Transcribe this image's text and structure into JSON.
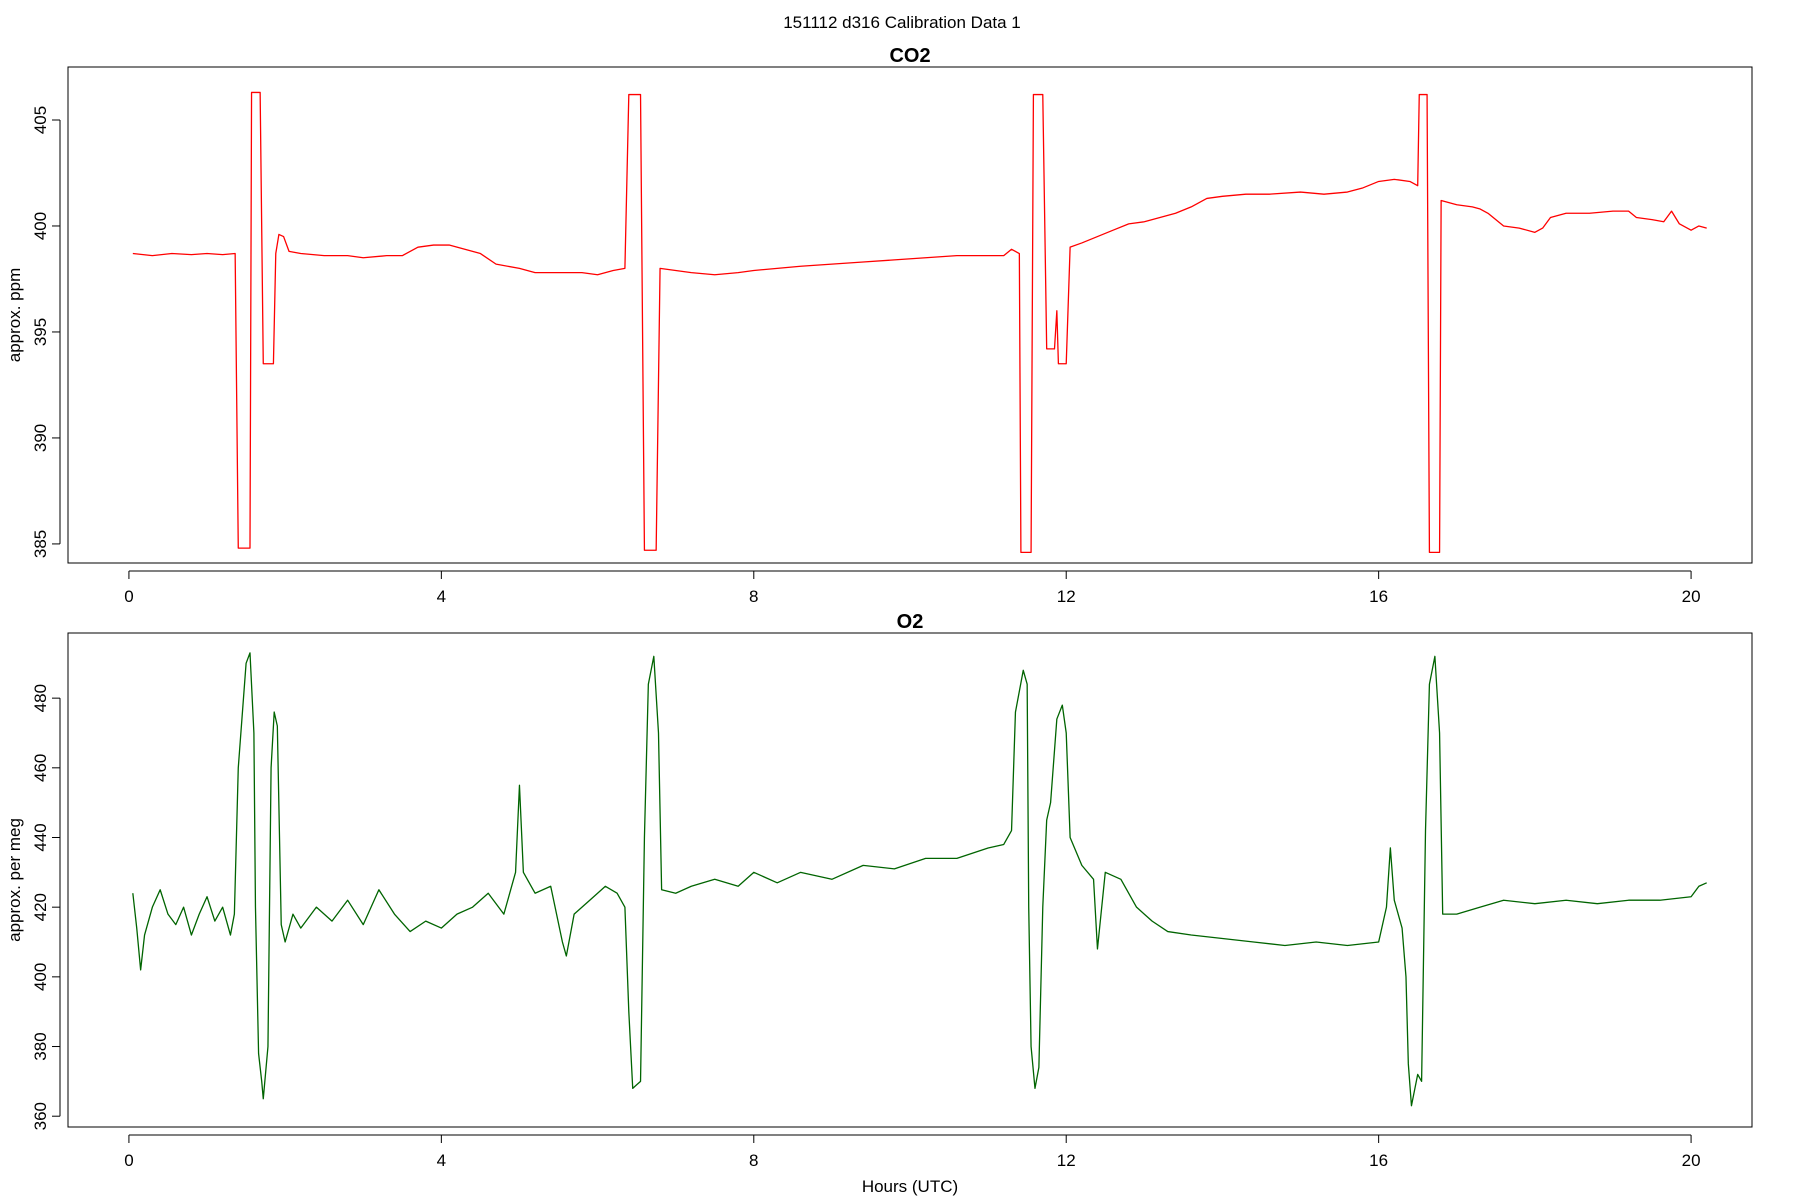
{
  "figure": {
    "title": "151112   d316   Calibration Data 1"
  },
  "chart_data": [
    {
      "type": "line",
      "title": "CO2",
      "xlabel": "",
      "ylabel": "approx. ppm",
      "xlim": [
        -0.78,
        20.78
      ],
      "ylim": [
        384.1,
        407.5
      ],
      "x_ticks": [
        0,
        4,
        8,
        12,
        16,
        20
      ],
      "y_ticks": [
        385,
        390,
        395,
        400,
        405
      ],
      "grid": false,
      "legend": "none",
      "series": [
        {
          "color": "#ff0000",
          "points": [
            [
              0.05,
              398.7
            ],
            [
              0.3,
              398.6
            ],
            [
              0.55,
              398.7
            ],
            [
              0.8,
              398.65
            ],
            [
              1.0,
              398.7
            ],
            [
              1.2,
              398.65
            ],
            [
              1.36,
              398.7
            ],
            [
              1.4,
              384.8
            ],
            [
              1.55,
              384.8
            ],
            [
              1.57,
              406.3
            ],
            [
              1.68,
              406.3
            ],
            [
              1.72,
              393.5
            ],
            [
              1.85,
              393.5
            ],
            [
              1.88,
              398.7
            ],
            [
              1.92,
              399.6
            ],
            [
              1.98,
              399.5
            ],
            [
              2.05,
              398.8
            ],
            [
              2.2,
              398.7
            ],
            [
              2.5,
              398.6
            ],
            [
              2.8,
              398.6
            ],
            [
              3.0,
              398.5
            ],
            [
              3.3,
              398.6
            ],
            [
              3.5,
              398.6
            ],
            [
              3.7,
              399.0
            ],
            [
              3.9,
              399.1
            ],
            [
              4.1,
              399.1
            ],
            [
              4.3,
              398.9
            ],
            [
              4.5,
              398.7
            ],
            [
              4.7,
              398.2
            ],
            [
              5.0,
              398.0
            ],
            [
              5.2,
              397.8
            ],
            [
              5.5,
              397.8
            ],
            [
              5.8,
              397.8
            ],
            [
              6.0,
              397.7
            ],
            [
              6.2,
              397.9
            ],
            [
              6.35,
              398.0
            ],
            [
              6.4,
              406.2
            ],
            [
              6.55,
              406.2
            ],
            [
              6.6,
              384.7
            ],
            [
              6.75,
              384.7
            ],
            [
              6.8,
              398.0
            ],
            [
              7.0,
              397.9
            ],
            [
              7.2,
              397.8
            ],
            [
              7.5,
              397.7
            ],
            [
              7.8,
              397.8
            ],
            [
              8.0,
              397.9
            ],
            [
              8.3,
              398.0
            ],
            [
              8.6,
              398.1
            ],
            [
              9.0,
              398.2
            ],
            [
              9.4,
              398.3
            ],
            [
              9.8,
              398.4
            ],
            [
              10.2,
              398.5
            ],
            [
              10.6,
              398.6
            ],
            [
              11.0,
              398.6
            ],
            [
              11.2,
              398.6
            ],
            [
              11.3,
              398.9
            ],
            [
              11.4,
              398.7
            ],
            [
              11.42,
              384.6
            ],
            [
              11.55,
              384.6
            ],
            [
              11.58,
              406.2
            ],
            [
              11.7,
              406.2
            ],
            [
              11.75,
              394.2
            ],
            [
              11.85,
              394.2
            ],
            [
              11.88,
              396.0
            ],
            [
              11.9,
              393.5
            ],
            [
              12.0,
              393.5
            ],
            [
              12.05,
              399.0
            ],
            [
              12.2,
              399.2
            ],
            [
              12.4,
              399.5
            ],
            [
              12.6,
              399.8
            ],
            [
              12.8,
              400.1
            ],
            [
              13.0,
              400.2
            ],
            [
              13.2,
              400.4
            ],
            [
              13.4,
              400.6
            ],
            [
              13.6,
              400.9
            ],
            [
              13.8,
              401.3
            ],
            [
              14.0,
              401.4
            ],
            [
              14.3,
              401.5
            ],
            [
              14.6,
              401.5
            ],
            [
              15.0,
              401.6
            ],
            [
              15.3,
              401.5
            ],
            [
              15.6,
              401.6
            ],
            [
              15.8,
              401.8
            ],
            [
              16.0,
              402.1
            ],
            [
              16.2,
              402.2
            ],
            [
              16.4,
              402.1
            ],
            [
              16.5,
              401.9
            ],
            [
              16.52,
              406.2
            ],
            [
              16.62,
              406.2
            ],
            [
              16.65,
              384.6
            ],
            [
              16.78,
              384.6
            ],
            [
              16.8,
              401.2
            ],
            [
              17.0,
              401.0
            ],
            [
              17.2,
              400.9
            ],
            [
              17.3,
              400.8
            ],
            [
              17.4,
              400.6
            ],
            [
              17.6,
              400.0
            ],
            [
              17.8,
              399.9
            ],
            [
              18.0,
              399.7
            ],
            [
              18.1,
              399.9
            ],
            [
              18.2,
              400.4
            ],
            [
              18.4,
              400.6
            ],
            [
              18.7,
              400.6
            ],
            [
              19.0,
              400.7
            ],
            [
              19.2,
              400.7
            ],
            [
              19.3,
              400.4
            ],
            [
              19.5,
              400.3
            ],
            [
              19.65,
              400.2
            ],
            [
              19.75,
              400.7
            ],
            [
              19.85,
              400.1
            ],
            [
              20.0,
              399.8
            ],
            [
              20.1,
              400.0
            ],
            [
              20.2,
              399.9
            ]
          ]
        }
      ]
    },
    {
      "type": "line",
      "title": "O2",
      "xlabel": "Hours (UTC)",
      "ylabel": "approx. per meg",
      "xlim": [
        -0.78,
        20.78
      ],
      "ylim": [
        356.9,
        498.7
      ],
      "x_ticks": [
        0,
        4,
        8,
        12,
        16,
        20
      ],
      "y_ticks": [
        360,
        380,
        400,
        420,
        440,
        460,
        480
      ],
      "grid": false,
      "legend": "none",
      "series": [
        {
          "color": "#006400",
          "points": [
            [
              0.05,
              424
            ],
            [
              0.1,
              414
            ],
            [
              0.15,
              402
            ],
            [
              0.2,
              412
            ],
            [
              0.3,
              420
            ],
            [
              0.4,
              425
            ],
            [
              0.5,
              418
            ],
            [
              0.6,
              415
            ],
            [
              0.7,
              420
            ],
            [
              0.8,
              412
            ],
            [
              0.9,
              418
            ],
            [
              1.0,
              423
            ],
            [
              1.1,
              416
            ],
            [
              1.2,
              420
            ],
            [
              1.3,
              412
            ],
            [
              1.35,
              418
            ],
            [
              1.4,
              460
            ],
            [
              1.5,
              490
            ],
            [
              1.55,
              493
            ],
            [
              1.6,
              470
            ],
            [
              1.62,
              420
            ],
            [
              1.66,
              378
            ],
            [
              1.7,
              370
            ],
            [
              1.72,
              365
            ],
            [
              1.78,
              380
            ],
            [
              1.82,
              460
            ],
            [
              1.86,
              476
            ],
            [
              1.9,
              472
            ],
            [
              1.95,
              415
            ],
            [
              2.0,
              410
            ],
            [
              2.1,
              418
            ],
            [
              2.2,
              414
            ],
            [
              2.4,
              420
            ],
            [
              2.6,
              416
            ],
            [
              2.8,
              422
            ],
            [
              3.0,
              415
            ],
            [
              3.2,
              425
            ],
            [
              3.4,
              418
            ],
            [
              3.6,
              413
            ],
            [
              3.8,
              416
            ],
            [
              4.0,
              414
            ],
            [
              4.2,
              418
            ],
            [
              4.4,
              420
            ],
            [
              4.6,
              424
            ],
            [
              4.8,
              418
            ],
            [
              4.95,
              430
            ],
            [
              5.0,
              455
            ],
            [
              5.05,
              430
            ],
            [
              5.2,
              424
            ],
            [
              5.4,
              426
            ],
            [
              5.55,
              410
            ],
            [
              5.6,
              406
            ],
            [
              5.7,
              418
            ],
            [
              5.9,
              422
            ],
            [
              6.1,
              426
            ],
            [
              6.25,
              424
            ],
            [
              6.35,
              420
            ],
            [
              6.4,
              390
            ],
            [
              6.45,
              368
            ],
            [
              6.55,
              370
            ],
            [
              6.6,
              440
            ],
            [
              6.65,
              484
            ],
            [
              6.72,
              492
            ],
            [
              6.78,
              470
            ],
            [
              6.82,
              425
            ],
            [
              7.0,
              424
            ],
            [
              7.2,
              426
            ],
            [
              7.5,
              428
            ],
            [
              7.8,
              426
            ],
            [
              8.0,
              430
            ],
            [
              8.3,
              427
            ],
            [
              8.6,
              430
            ],
            [
              9.0,
              428
            ],
            [
              9.4,
              432
            ],
            [
              9.8,
              431
            ],
            [
              10.2,
              434
            ],
            [
              10.6,
              434
            ],
            [
              11.0,
              437
            ],
            [
              11.2,
              438
            ],
            [
              11.3,
              442
            ],
            [
              11.35,
              476
            ],
            [
              11.45,
              488
            ],
            [
              11.5,
              484
            ],
            [
              11.52,
              420
            ],
            [
              11.55,
              380
            ],
            [
              11.6,
              368
            ],
            [
              11.65,
              374
            ],
            [
              11.7,
              420
            ],
            [
              11.75,
              445
            ],
            [
              11.8,
              450
            ],
            [
              11.88,
              474
            ],
            [
              11.95,
              478
            ],
            [
              12.0,
              470
            ],
            [
              12.05,
              440
            ],
            [
              12.2,
              432
            ],
            [
              12.35,
              428
            ],
            [
              12.4,
              408
            ],
            [
              12.5,
              430
            ],
            [
              12.7,
              428
            ],
            [
              12.9,
              420
            ],
            [
              13.1,
              416
            ],
            [
              13.3,
              413
            ],
            [
              13.6,
              412
            ],
            [
              14.0,
              411
            ],
            [
              14.4,
              410
            ],
            [
              14.8,
              409
            ],
            [
              15.2,
              410
            ],
            [
              15.6,
              409
            ],
            [
              16.0,
              410
            ],
            [
              16.1,
              420
            ],
            [
              16.15,
              437
            ],
            [
              16.2,
              422
            ],
            [
              16.3,
              414
            ],
            [
              16.35,
              400
            ],
            [
              16.38,
              375
            ],
            [
              16.42,
              363
            ],
            [
              16.5,
              372
            ],
            [
              16.55,
              370
            ],
            [
              16.6,
              442
            ],
            [
              16.65,
              484
            ],
            [
              16.72,
              492
            ],
            [
              16.78,
              470
            ],
            [
              16.82,
              418
            ],
            [
              17.0,
              418
            ],
            [
              17.3,
              420
            ],
            [
              17.6,
              422
            ],
            [
              18.0,
              421
            ],
            [
              18.4,
              422
            ],
            [
              18.8,
              421
            ],
            [
              19.2,
              422
            ],
            [
              19.6,
              422
            ],
            [
              20.0,
              423
            ],
            [
              20.1,
              426
            ],
            [
              20.2,
              427
            ]
          ]
        }
      ]
    }
  ]
}
